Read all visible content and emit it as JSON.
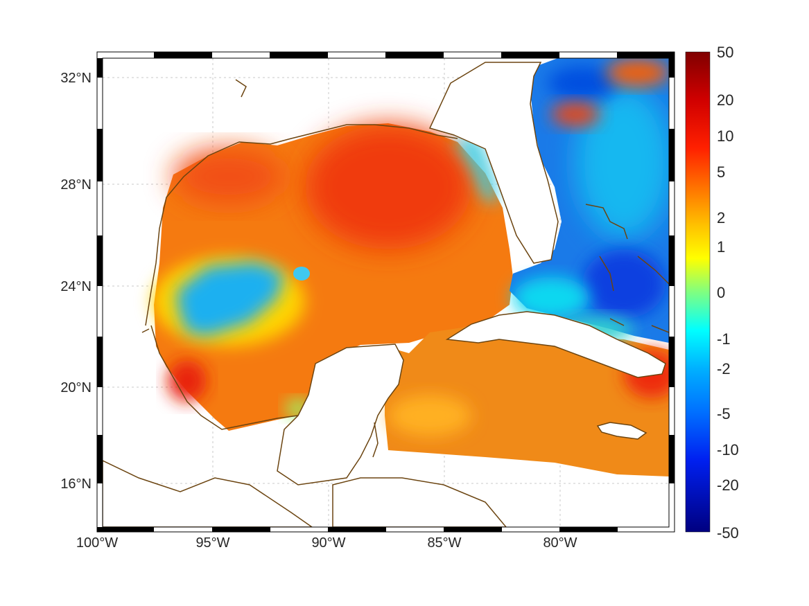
{
  "map": {
    "projection": "equirectangular",
    "lon_range": [
      -100,
      -75
    ],
    "lat_range": [
      14.3,
      33
    ],
    "field_description_levels": "diverging colormap, blue negative to red positive"
  },
  "axes": {
    "lon_ticks": [
      {
        "value": -100,
        "label": "100°W"
      },
      {
        "value": -95,
        "label": "95°W"
      },
      {
        "value": -90,
        "label": "90°W"
      },
      {
        "value": -85,
        "label": "85°W"
      },
      {
        "value": -80,
        "label": "80°W"
      }
    ],
    "lat_ticks": [
      {
        "value": 32,
        "label": "32°N"
      },
      {
        "value": 28,
        "label": "28°N"
      },
      {
        "value": 24,
        "label": "24°N"
      },
      {
        "value": 20,
        "label": "20°N"
      },
      {
        "value": 16,
        "label": "16°N"
      }
    ],
    "grid": true
  },
  "colorbar": {
    "labels": [
      "50",
      "20",
      "10",
      "5",
      "2",
      "1",
      "0",
      "-1",
      "-2",
      "-5",
      "-10",
      "-20",
      "-50"
    ],
    "colors": [
      "#800000",
      "#c00000",
      "#ff0000",
      "#ff8000",
      "#ffc000",
      "#ffff00",
      "#80ff80",
      "#00ffff",
      "#00c0ff",
      "#0080ff",
      "#0040ff",
      "#0000c0",
      "#000080"
    ]
  },
  "colors": {
    "coast": "#6b4410",
    "gulf_warm": "#f57a10",
    "gulf_hot": "#f03a10",
    "cool_patch": "#1aa8f0",
    "atlantic": "#1a7ae8"
  }
}
